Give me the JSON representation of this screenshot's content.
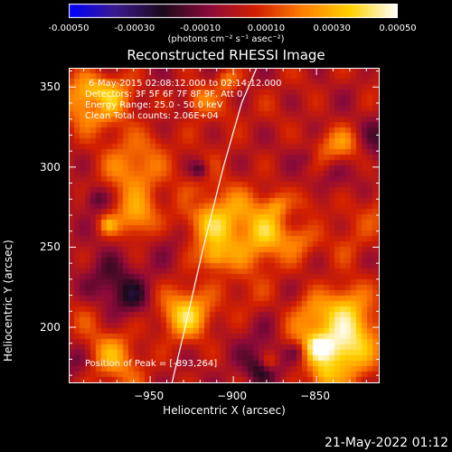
{
  "colorbar": {
    "tick_labels": [
      "-0.00050",
      "-0.00030",
      "-0.00010",
      "0.00010",
      "0.00030",
      "0.00050"
    ],
    "unit_label": "(photons cm⁻² s⁻¹ asec⁻²)",
    "min": -0.0005,
    "max": 0.0005
  },
  "annotations": {
    "time_range": "6-May-2015 02:08:12.000 to 02:14:12.000",
    "detectors": "Detectors: 3F 5F 6F 7F 8F 9F, Att 0",
    "energy": "Energy Range: 25.0 - 50.0 keV",
    "clean": "Clean    Total counts: 2.06E+04",
    "peak": "Position of Peak = [-893,264]"
  },
  "footer": {
    "date": "21-May-2022 01:12"
  },
  "chart_data": {
    "type": "heatmap",
    "title": "Reconstructed RHESSI Image",
    "xlabel": "Heliocentric X (arcsec)",
    "ylabel": "Heliocentric Y (arcsec)",
    "xlim": [
      -999,
      -812
    ],
    "ylim": [
      165,
      362
    ],
    "x_ticks": [
      -950,
      -900,
      -850
    ],
    "y_ticks": [
      200,
      250,
      300,
      350
    ],
    "x_tick_labels": [
      "−950",
      "−900",
      "−850"
    ],
    "y_tick_labels": [
      "200",
      "250",
      "300",
      "350"
    ],
    "colormap": [
      "#0000ff",
      "#3a1a8c",
      "#1a0a1a",
      "#8c0a3a",
      "#d22000",
      "#ff8000",
      "#ffd200",
      "#ffffff"
    ],
    "limb_curve": [
      [
        -937,
        165
      ],
      [
        -929,
        200
      ],
      [
        -918,
        250
      ],
      [
        -906,
        300
      ],
      [
        -895,
        340
      ],
      [
        -886,
        362
      ]
    ],
    "peak": [
      -893,
      264
    ]
  }
}
